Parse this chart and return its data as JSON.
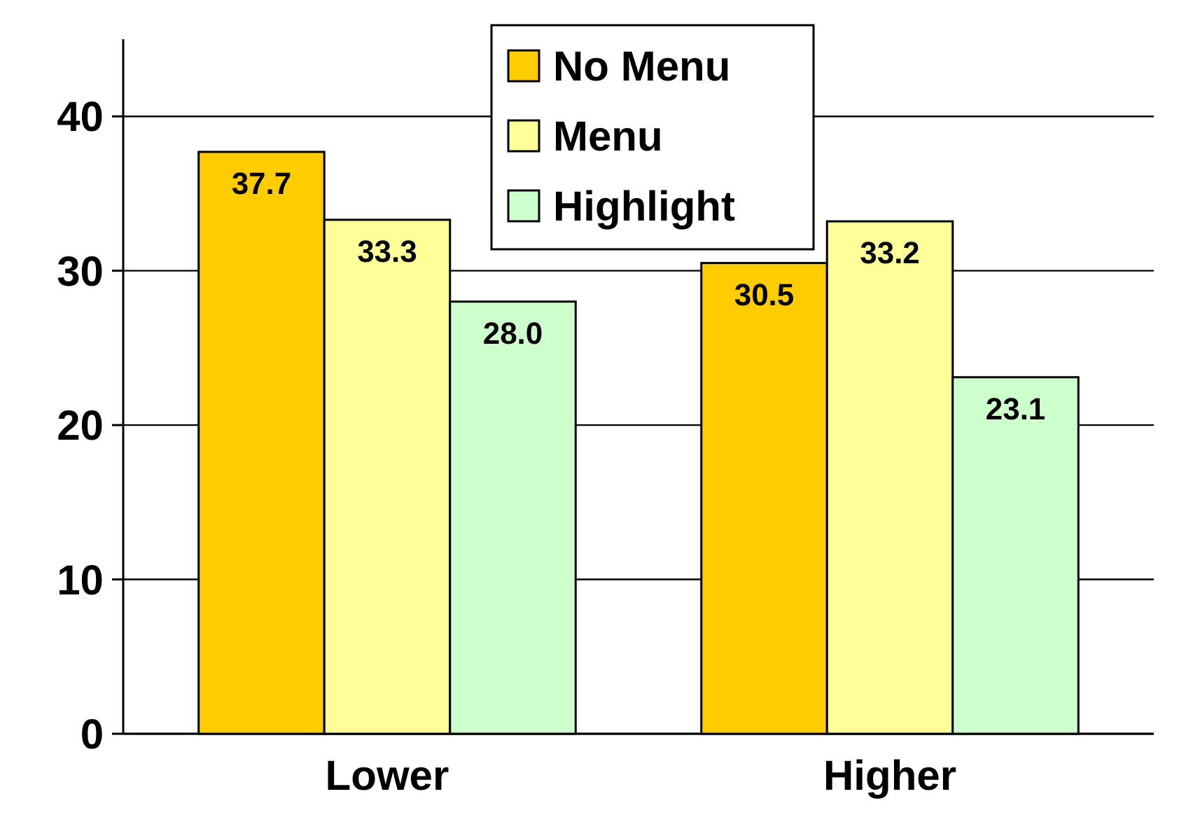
{
  "chart_data": {
    "type": "bar",
    "categories": [
      "Lower",
      "Higher"
    ],
    "series": [
      {
        "name": "No Menu",
        "color": "#ffcc00",
        "values": [
          37.7,
          30.5
        ],
        "value_labels": [
          "37.7",
          "30.5"
        ]
      },
      {
        "name": "Menu",
        "color": "#ffff99",
        "values": [
          33.3,
          33.2
        ],
        "value_labels": [
          "33.3",
          "33.2"
        ]
      },
      {
        "name": "Highlight",
        "color": "#ccffcc",
        "values": [
          28.0,
          23.1
        ],
        "value_labels": [
          "28.0",
          "23.1"
        ]
      }
    ],
    "ylim": [
      0,
      45
    ],
    "yticks": [
      0,
      10,
      20,
      30,
      40
    ],
    "grid": "y",
    "legend": "top"
  }
}
